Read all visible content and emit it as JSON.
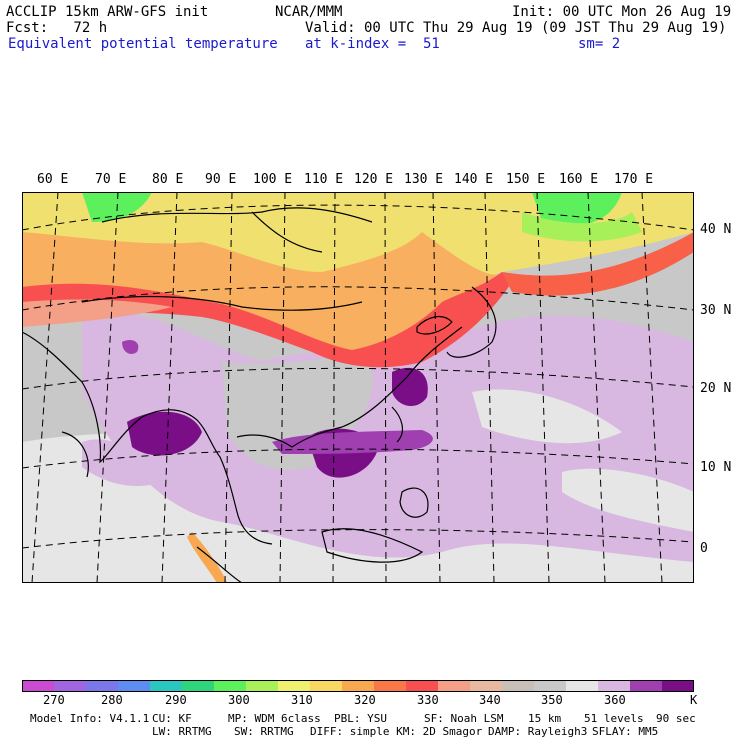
{
  "header": {
    "model": "ACCLIP 15km ARW-GFS init",
    "org": "NCAR/MMM",
    "init": "Init: 00 UTC Mon 26 Aug 19",
    "fcst": "Fcst:   72 h",
    "valid": "Valid: 00 UTC Thu 29 Aug 19 (09 JST Thu 29 Aug 19)",
    "field": "Equivalent potential temperature",
    "level": "at k-index =  51",
    "smooth": "sm= 2"
  },
  "lon_labels": [
    "60 E",
    "70 E",
    "80 E",
    "90 E",
    "100 E",
    "110 E",
    "120 E",
    "130 E",
    "140 E",
    "150 E",
    "160 E",
    "170 E"
  ],
  "lat_labels": [
    "40 N",
    "30 N",
    "20 N",
    "10 N",
    "0"
  ],
  "colorbar": {
    "colors": [
      "#c84bd0",
      "#a066e0",
      "#7a78e8",
      "#5f8cf0",
      "#2cc6c0",
      "#30d47a",
      "#5cf05c",
      "#a8f05a",
      "#f0f070",
      "#f8d862",
      "#f8a850",
      "#f8784a",
      "#f85050",
      "#f4a088",
      "#e8b8a0",
      "#c8c0b8",
      "#c8c8c8",
      "#e6e6e6",
      "#d8b8e0",
      "#a040b0",
      "#7a0e86"
    ],
    "labels": [
      "270",
      "280",
      "290",
      "300",
      "310",
      "320",
      "330",
      "340",
      "350",
      "360",
      "K"
    ]
  },
  "footer": {
    "line1_a": "Model Info: V4.1.1",
    "line1_b": "CU: KF",
    "line1_c": "MP: WDM 6class",
    "line1_d": "PBL: YSU",
    "line1_e": "SF: Noah LSM",
    "line1_f": "15 km",
    "line1_g": "51 levels",
    "line1_h": "90 sec",
    "line2_a": "LW: RRTMG",
    "line2_b": "SW: RRTMG",
    "line2_c": "DIFF: simple KM: 2D Smagor",
    "line2_d": "DAMP: Rayleigh3",
    "line2_e": "SFLAY: MM5"
  }
}
